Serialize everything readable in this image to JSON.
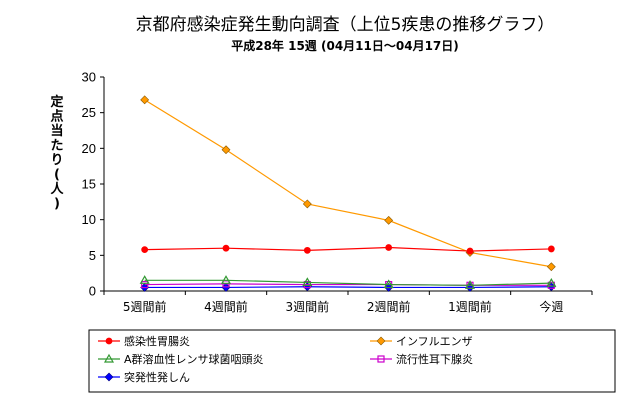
{
  "chart_data": {
    "type": "line",
    "title": "京都府感染症発生動向調査（上位5疾患の推移グラフ）",
    "subtitle": "平成28年 15週 (04月11日～04月17日)",
    "ylabel_chars": [
      "定",
      "点",
      "当",
      "た",
      "り",
      "(",
      "人",
      ")"
    ],
    "xlabel": "",
    "categories": [
      "5週間前",
      "4週間前",
      "3週間前",
      "2週間前",
      "1週間前",
      "今週"
    ],
    "ylim": [
      0,
      30
    ],
    "yticks": [
      "0",
      "5",
      "10",
      "15",
      "20",
      "25",
      "30"
    ],
    "grid": false,
    "legend_position": "bottom",
    "series": [
      {
        "name": "感染性胃腸炎",
        "color": "#ff0000",
        "marker": "circle",
        "values": [
          5.8,
          6.0,
          5.7,
          6.1,
          5.6,
          5.9
        ]
      },
      {
        "name": "インフルエンザ",
        "color": "#ff9900",
        "marker": "diamond",
        "values": [
          26.8,
          19.8,
          12.2,
          9.9,
          5.4,
          3.4
        ]
      },
      {
        "name": "A群溶血性レンサ球菌咽頭炎",
        "color": "#339933",
        "marker": "triangle",
        "values": [
          1.5,
          1.5,
          1.2,
          0.9,
          0.8,
          1.1
        ]
      },
      {
        "name": "流行性耳下腺炎",
        "color": "#cc00cc",
        "marker": "square",
        "values": [
          0.9,
          1.0,
          0.9,
          0.9,
          0.8,
          0.8
        ]
      },
      {
        "name": "突発性発しん",
        "color": "#0000ff",
        "marker": "diamond",
        "values": [
          0.5,
          0.5,
          0.6,
          0.5,
          0.5,
          0.6
        ]
      }
    ]
  }
}
